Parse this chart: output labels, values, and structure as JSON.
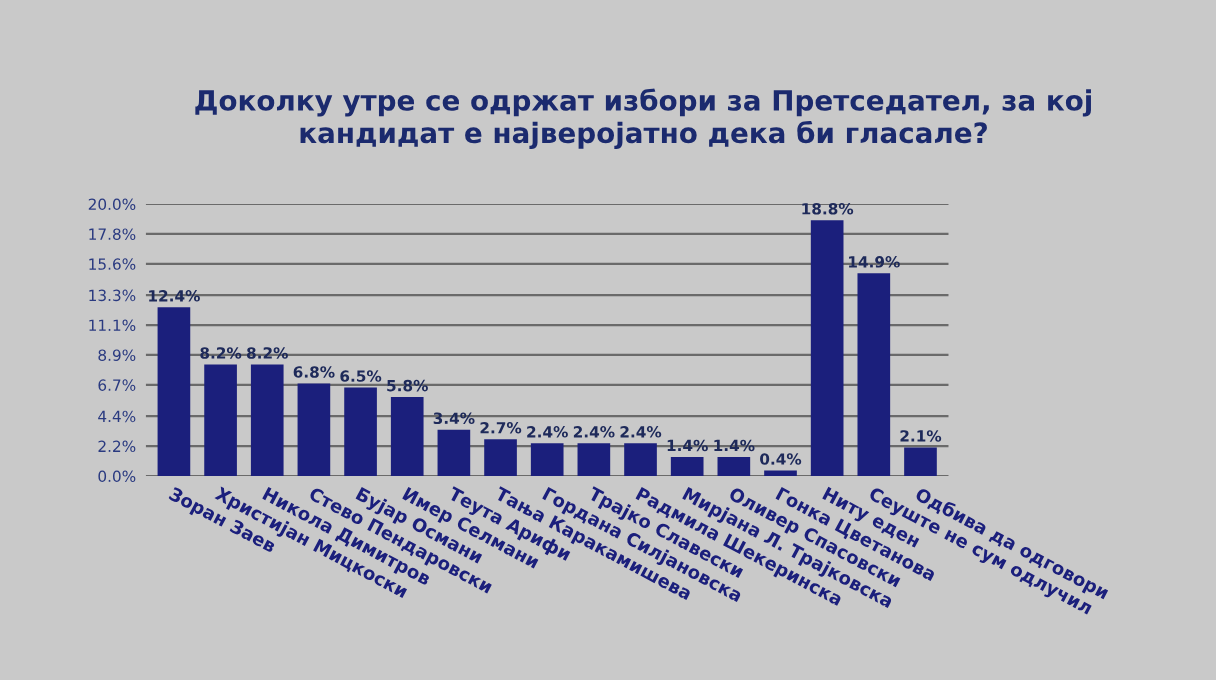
{
  "chart_data": {
    "type": "bar",
    "title": "Доколку утре се одржат избори за Претседател, за кој\nкандидат е најверојатно дека би гласале?",
    "categories": [
      "Зоран Заев",
      "Христијан Мицкоски",
      "Никола Димитров",
      "Стево Пендаровски",
      "Бујар Османи",
      "Имер Селмани",
      "Теута Арифи",
      "Тања Каракамишева",
      "Гордана Силјановска",
      "Трајко Славески",
      "Радмила Шекеринска",
      "Мирјана Л. Трајковска",
      "Оливер Спасовски",
      "Гонка Цветанова",
      "Ниту еден",
      "Сеуште не сум одлучил",
      "Одбива да одговори"
    ],
    "values": [
      12.4,
      8.2,
      8.2,
      6.8,
      6.5,
      5.8,
      3.4,
      2.7,
      2.4,
      2.4,
      2.4,
      1.4,
      1.4,
      0.4,
      18.8,
      14.9,
      2.1
    ],
    "value_labels": [
      "12.4%",
      "8.2%",
      "8.2%",
      "6.8%",
      "6.5%",
      "5.8%",
      "3.4%",
      "2.7%",
      "2.4%",
      "2.4%",
      "2.4%",
      "1.4%",
      "1.4%",
      "0.4%",
      "18.8%",
      "14.9%",
      "2.1%"
    ],
    "color": "#1b1f7c",
    "ylim": [
      0,
      20
    ],
    "yticks": [
      {
        "value": 0,
        "label": "0.0%"
      },
      {
        "value": 2.2,
        "label": "2.2%"
      },
      {
        "value": 4.4,
        "label": "4.4%"
      },
      {
        "value": 6.7,
        "label": "6.7%"
      },
      {
        "value": 8.9,
        "label": "8.9%"
      },
      {
        "value": 11.1,
        "label": "11.1%"
      },
      {
        "value": 13.3,
        "label": "13.3%"
      },
      {
        "value": 15.6,
        "label": "15.6%"
      },
      {
        "value": 17.8,
        "label": "17.8%"
      },
      {
        "value": 20,
        "label": "20.0%"
      }
    ],
    "grid": "y"
  }
}
